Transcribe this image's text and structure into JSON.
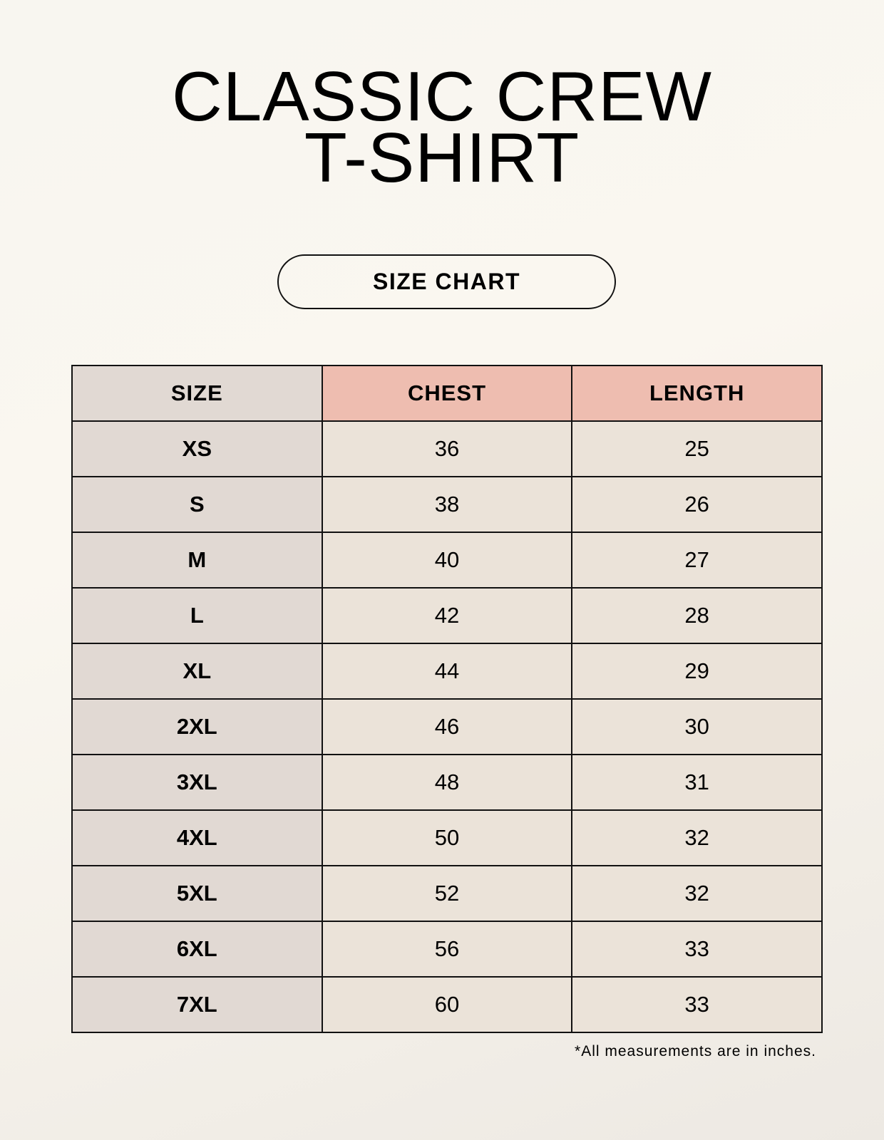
{
  "title": {
    "line1": "CLASSIC CREW",
    "line2": "T-SHIRT"
  },
  "badge": "SIZE CHART",
  "table": {
    "headers": [
      "SIZE",
      "CHEST",
      "LENGTH"
    ],
    "rows": [
      [
        "XS",
        "36",
        "25"
      ],
      [
        "S",
        "38",
        "26"
      ],
      [
        "M",
        "40",
        "27"
      ],
      [
        "L",
        "42",
        "28"
      ],
      [
        "XL",
        "44",
        "29"
      ],
      [
        "2XL",
        "46",
        "30"
      ],
      [
        "3XL",
        "48",
        "31"
      ],
      [
        "4XL",
        "50",
        "32"
      ],
      [
        "5XL",
        "52",
        "32"
      ],
      [
        "6XL",
        "56",
        "33"
      ],
      [
        "7XL",
        "60",
        "33"
      ]
    ]
  },
  "footnote": "*All measurements are in inches.",
  "colors": {
    "size_column": "#e1d9d3",
    "header_accent": "#eebdb0",
    "value_cells": "#ebe3d9"
  }
}
